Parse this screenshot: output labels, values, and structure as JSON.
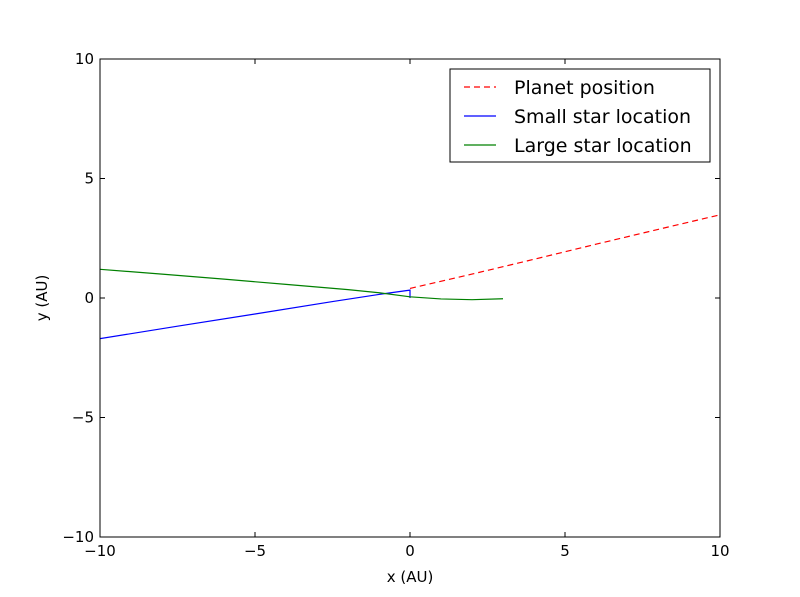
{
  "chart_data": {
    "type": "line",
    "title": "",
    "xlabel": "x (AU)",
    "ylabel": "y (AU)",
    "xlim": [
      -10,
      10
    ],
    "ylim": [
      -10,
      10
    ],
    "x_ticks": [
      -10,
      -5,
      0,
      5,
      10
    ],
    "y_ticks": [
      -10,
      -5,
      0,
      5,
      10
    ],
    "x_tick_labels": [
      "−10",
      "−5",
      "0",
      "5",
      "10"
    ],
    "y_tick_labels": [
      "−10",
      "−5",
      "0",
      "5",
      "10"
    ],
    "grid": false,
    "legend_position": "top-right",
    "series": [
      {
        "name": "Planet position",
        "color": "#ff0000",
        "style": "dashed",
        "x": [
          0.0,
          2.0,
          4.0,
          6.0,
          8.0,
          10.0
        ],
        "y": [
          0.4,
          1.0,
          1.62,
          2.25,
          2.87,
          3.48
        ]
      },
      {
        "name": "Small star location",
        "color": "#0000ff",
        "style": "solid",
        "x": [
          -10.0,
          -7.5,
          -5.0,
          -2.5,
          -1.0,
          0.0,
          0.0
        ],
        "y": [
          -1.7,
          -1.18,
          -0.67,
          -0.15,
          0.15,
          0.33,
          0.0
        ]
      },
      {
        "name": "Large star location",
        "color": "#008000",
        "style": "solid",
        "x": [
          -10.0,
          -8.0,
          -6.0,
          -4.0,
          -2.0,
          -1.0,
          0.0,
          1.0,
          2.0,
          3.0
        ],
        "y": [
          1.2,
          1.0,
          0.79,
          0.57,
          0.35,
          0.22,
          0.05,
          -0.04,
          -0.07,
          -0.03
        ]
      }
    ]
  }
}
